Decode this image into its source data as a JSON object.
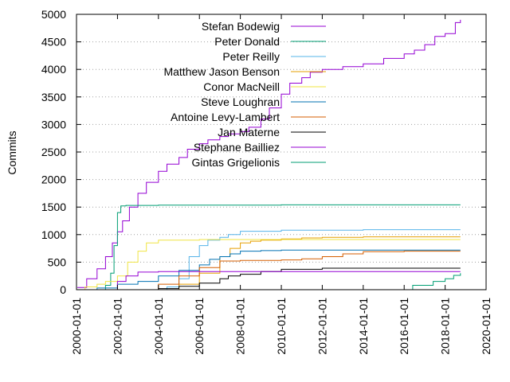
{
  "chart_data": {
    "type": "line",
    "title": "",
    "xlabel": "",
    "ylabel": "Commits",
    "xlim": [
      "2000-01-01",
      "2020-01-01"
    ],
    "ylim": [
      0,
      5000
    ],
    "xticks": [
      "2000-01-01",
      "2002-01-01",
      "2004-01-01",
      "2006-01-01",
      "2008-01-01",
      "2010-01-01",
      "2012-01-01",
      "2014-01-01",
      "2016-01-01",
      "2018-01-01",
      "2020-01-01"
    ],
    "yticks": [
      "0",
      "500",
      "1000",
      "1500",
      "2000",
      "2500",
      "3000",
      "3500",
      "4000",
      "4500",
      "5000"
    ],
    "grid": "horizontal dotted",
    "legend_position": "top-left inside",
    "series": [
      {
        "name": "Stefan Bodewig",
        "color": "#9400d3",
        "x": [
          "2000-01-15",
          "2000-07-01",
          "2001-01-01",
          "2001-06-01",
          "2001-10-01",
          "2002-01-01",
          "2002-04-01",
          "2002-08-01",
          "2003-01-01",
          "2003-06-01",
          "2004-01-01",
          "2004-06-01",
          "2005-01-01",
          "2005-06-01",
          "2006-01-01",
          "2006-06-01",
          "2007-01-01",
          "2007-06-01",
          "2008-01-01",
          "2008-06-01",
          "2009-01-01",
          "2009-06-01",
          "2010-01-01",
          "2010-06-01",
          "2011-01-01",
          "2011-06-01",
          "2012-01-01",
          "2013-01-01",
          "2014-01-01",
          "2015-01-01",
          "2016-01-01",
          "2016-07-01",
          "2017-01-01",
          "2017-07-01",
          "2018-01-01",
          "2018-07-01",
          "2018-10-01"
        ],
        "y": [
          40,
          200,
          380,
          600,
          850,
          1050,
          1250,
          1500,
          1750,
          1950,
          2150,
          2280,
          2400,
          2550,
          2650,
          2720,
          2780,
          2830,
          2870,
          2950,
          3100,
          3300,
          3550,
          3750,
          3850,
          3950,
          4000,
          4050,
          4100,
          4200,
          4280,
          4350,
          4450,
          4600,
          4650,
          4850,
          4900
        ]
      },
      {
        "name": "Peter Donald",
        "color": "#009e73",
        "x": [
          "2000-10-01",
          "2001-06-01",
          "2001-09-01",
          "2001-11-01",
          "2002-01-01",
          "2002-03-01",
          "2002-06-01",
          "2004-01-01",
          "2010-01-01",
          "2018-10-01"
        ],
        "y": [
          0,
          80,
          300,
          800,
          1400,
          1520,
          1530,
          1535,
          1540,
          1540
        ]
      },
      {
        "name": "Peter Reilly",
        "color": "#56b4e9",
        "x": [
          "2003-06-01",
          "2004-06-01",
          "2005-01-01",
          "2005-07-01",
          "2006-01-01",
          "2006-06-01",
          "2007-01-01",
          "2007-06-01",
          "2008-01-01",
          "2010-01-01",
          "2014-01-01",
          "2018-10-01"
        ],
        "y": [
          0,
          50,
          200,
          600,
          800,
          900,
          950,
          1000,
          1060,
          1080,
          1090,
          1090
        ]
      },
      {
        "name": "Matthew Jason Benson",
        "color": "#e69f00",
        "x": [
          "2004-06-01",
          "2005-01-01",
          "2006-01-01",
          "2007-01-01",
          "2007-07-01",
          "2008-01-01",
          "2008-07-01",
          "2009-01-01",
          "2010-01-01",
          "2011-01-01",
          "2012-01-01",
          "2014-01-01",
          "2018-10-01"
        ],
        "y": [
          0,
          100,
          300,
          600,
          750,
          850,
          880,
          900,
          920,
          940,
          950,
          960,
          960
        ]
      },
      {
        "name": "Conor MacNeill",
        "color": "#f0e442",
        "x": [
          "2000-01-15",
          "2000-06-01",
          "2001-01-01",
          "2001-06-01",
          "2002-01-01",
          "2002-07-01",
          "2003-01-01",
          "2003-06-01",
          "2004-01-01",
          "2006-01-01",
          "2010-01-01",
          "2018-10-01"
        ],
        "y": [
          0,
          50,
          100,
          150,
          250,
          500,
          700,
          850,
          900,
          910,
          910,
          910
        ]
      },
      {
        "name": "Steve Loughran",
        "color": "#0072b2",
        "x": [
          "2000-06-01",
          "2001-01-01",
          "2002-01-01",
          "2003-01-01",
          "2004-01-01",
          "2005-01-01",
          "2006-01-01",
          "2006-07-01",
          "2007-01-01",
          "2007-07-01",
          "2008-01-01",
          "2009-01-01",
          "2010-01-01",
          "2012-01-01",
          "2018-10-01"
        ],
        "y": [
          0,
          30,
          100,
          150,
          250,
          350,
          450,
          550,
          600,
          650,
          700,
          710,
          720,
          720,
          720
        ]
      },
      {
        "name": "Antoine Levy-Lambert",
        "color": "#d55e00",
        "x": [
          "2003-06-01",
          "2004-01-01",
          "2005-01-01",
          "2006-01-01",
          "2007-01-01",
          "2008-01-01",
          "2010-01-01",
          "2011-01-01",
          "2012-01-01",
          "2013-01-01",
          "2014-01-01",
          "2016-01-01",
          "2018-10-01"
        ],
        "y": [
          0,
          100,
          250,
          400,
          520,
          530,
          540,
          560,
          600,
          650,
          690,
          700,
          700
        ]
      },
      {
        "name": "Jan Materne",
        "color": "#000000",
        "x": [
          "2003-01-01",
          "2004-01-01",
          "2005-01-01",
          "2006-01-01",
          "2007-01-01",
          "2007-06-01",
          "2008-01-01",
          "2009-01-01",
          "2010-01-01",
          "2012-01-01",
          "2018-10-01"
        ],
        "y": [
          0,
          20,
          60,
          120,
          200,
          250,
          280,
          330,
          370,
          390,
          390
        ]
      },
      {
        "name": "Stephane Bailliez",
        "color": "#9400d3",
        "x": [
          "2001-06-01",
          "2002-01-01",
          "2002-06-01",
          "2003-01-01",
          "2004-01-01",
          "2018-10-01"
        ],
        "y": [
          0,
          150,
          250,
          320,
          330,
          330
        ]
      },
      {
        "name": "Gintas Grigelionis",
        "color": "#009e73",
        "x": [
          "2015-06-01",
          "2016-06-01",
          "2017-06-01",
          "2018-01-01",
          "2018-06-01",
          "2018-10-01"
        ],
        "y": [
          0,
          80,
          150,
          200,
          260,
          300
        ]
      }
    ]
  }
}
